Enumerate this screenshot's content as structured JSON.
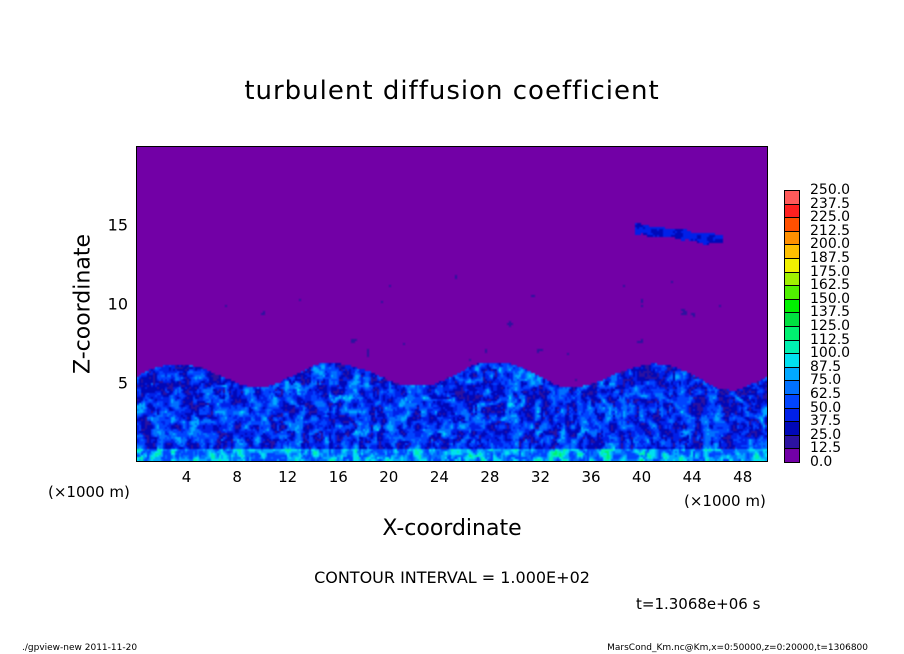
{
  "chart_data": {
    "type": "heatmap",
    "title": "turbulent diffusion coefficient",
    "xlabel": "X-coordinate",
    "ylabel": "Z-coordinate",
    "x_unit_label_left": "(×1000 m)",
    "x_unit_label_right": "(×1000 m)",
    "xlim": [
      0,
      50
    ],
    "ylim": [
      0,
      20
    ],
    "xticks": [
      "4",
      "8",
      "12",
      "16",
      "20",
      "24",
      "28",
      "32",
      "36",
      "40",
      "44",
      "48"
    ],
    "yticks": [
      "5",
      "10",
      "15"
    ],
    "colorbar": {
      "levels": [
        "0.0",
        "12.5",
        "25.0",
        "37.5",
        "50.0",
        "62.5",
        "75.0",
        "87.5",
        "100.0",
        "112.5",
        "125.0",
        "137.5",
        "150.0",
        "162.5",
        "175.0",
        "187.5",
        "200.0",
        "212.5",
        "225.0",
        "237.5",
        "250.0"
      ],
      "colors": [
        "#7200a6",
        "#2c12a0",
        "#0008b8",
        "#0020e8",
        "#0044ff",
        "#0070ff",
        "#00a8ff",
        "#00e0f0",
        "#00f0b0",
        "#00f070",
        "#00e040",
        "#00f000",
        "#50f000",
        "#a0f000",
        "#f0f000",
        "#ffc000",
        "#ff9000",
        "#ff5000",
        "#ff2020",
        "#ff5a5a"
      ]
    },
    "contour_interval": "CONTOUR INTERVAL = 1.000E+02",
    "time": "t=1.3068e+06 s",
    "field_summary": "Turbulent layer from z=0 to ~5-6 km with values mostly 12.5-100; isolated patch near x=40-46, z~15; background 0."
  },
  "footer": {
    "left": "./gpview-new  2011-11-20",
    "right": "MarsCond_Km.nc@Km,x=0:50000,z=0:20000,t=1306800"
  }
}
